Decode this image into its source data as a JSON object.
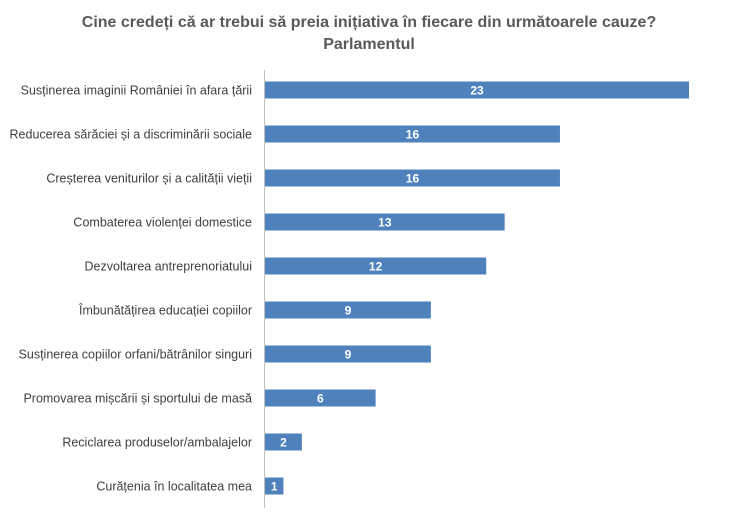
{
  "chart_data": {
    "type": "bar",
    "orientation": "horizontal",
    "title": "Cine credeți că ar trebui să preia inițiativa în fiecare din următoarele cauze?",
    "subtitle": "Parlamentul",
    "categories": [
      "Susținerea imaginii României în afara țării",
      "Reducerea sărăciei și a discriminării sociale",
      "Creșterea veniturilor și a calității vieții",
      "Combaterea violenței domestice",
      "Dezvoltarea antreprenoriatului",
      "Îmbunătățirea educației copiilor",
      "Susținerea copiilor orfani/bătrânilor singuri",
      "Promovarea mișcării și sportului de masă",
      "Reciclarea produselor/ambalajelor",
      "Curățenia în localitatea mea"
    ],
    "values": [
      23,
      16,
      16,
      13,
      12,
      9,
      9,
      6,
      2,
      1
    ],
    "xlim": [
      0,
      23
    ],
    "bar_color": "#4f81bd",
    "data_labels": true,
    "grid": false,
    "legend": "none"
  }
}
